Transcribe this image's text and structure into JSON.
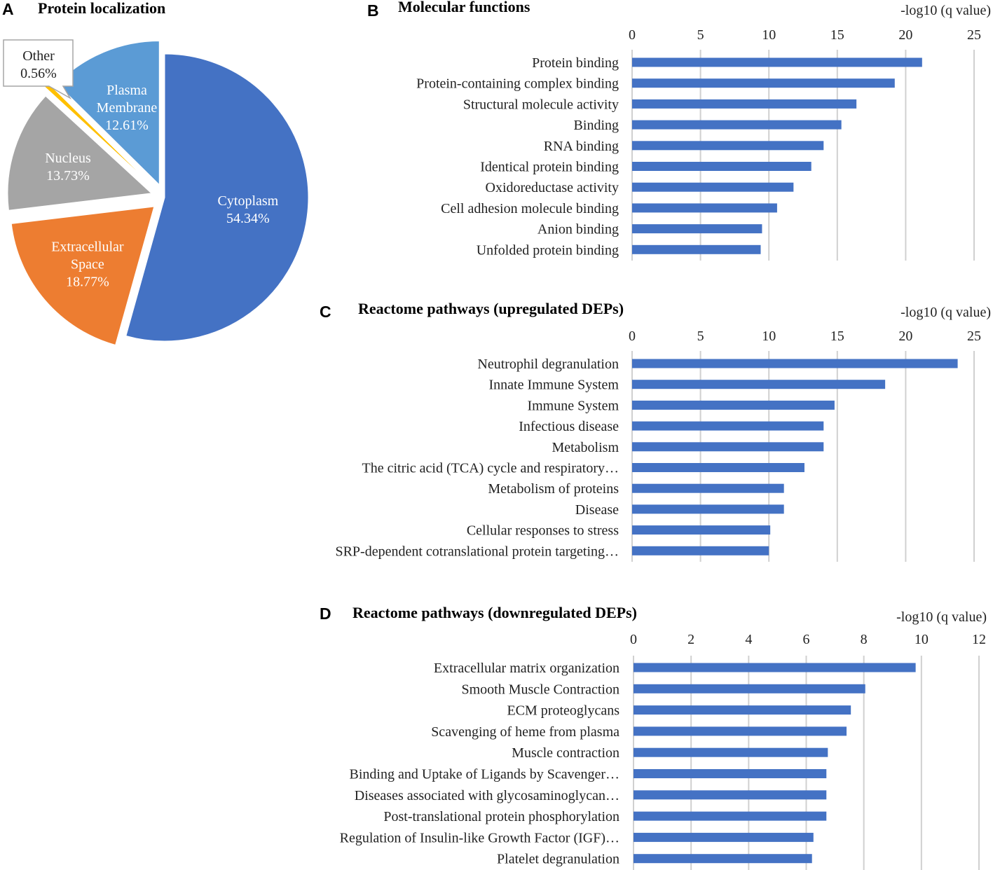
{
  "chart_data": [
    {
      "panel": "A",
      "type": "pie",
      "title": "Protein localization",
      "slices": [
        {
          "name": "Cytoplasm",
          "value": 54.34,
          "label": "54.34%",
          "color": "#4472C4"
        },
        {
          "name": "Extracellular Space",
          "value": 18.77,
          "label": "18.77%",
          "color": "#ED7D31"
        },
        {
          "name": "Nucleus",
          "value": 13.73,
          "label": "13.73%",
          "color": "#A5A5A5"
        },
        {
          "name": "Other",
          "value": 0.56,
          "label": "0.56%",
          "color": "#FFC000"
        },
        {
          "name": "Plasma Membrane",
          "value": 12.61,
          "label": "12.61%",
          "color": "#5B9BD5"
        }
      ]
    },
    {
      "panel": "B",
      "type": "bar",
      "orientation": "horizontal",
      "title": "Molecular functions",
      "xlabel": "-log10 (q value)",
      "xlim": [
        0,
        25
      ],
      "ticks": [
        0,
        5,
        10,
        15,
        20,
        25
      ],
      "color": "#4472C4",
      "categories": [
        "Protein binding",
        "Protein-containing complex binding",
        "Structural molecule activity",
        "Binding",
        "RNA binding",
        "Identical protein binding",
        "Oxidoreductase activity",
        "Cell adhesion molecule binding",
        "Anion binding",
        "Unfolded protein binding"
      ],
      "values": [
        21.2,
        19.2,
        16.4,
        15.3,
        14.0,
        13.1,
        11.8,
        10.6,
        9.5,
        9.4
      ]
    },
    {
      "panel": "C",
      "type": "bar",
      "orientation": "horizontal",
      "title": "Reactome pathways (upregulated DEPs)",
      "xlabel": "-log10 (q value)",
      "xlim": [
        0,
        25
      ],
      "ticks": [
        0,
        5,
        10,
        15,
        20,
        25
      ],
      "color": "#4472C4",
      "categories": [
        "Neutrophil degranulation",
        "Innate Immune System",
        "Immune System",
        "Infectious disease",
        "Metabolism",
        "The citric acid (TCA) cycle and respiratory…",
        "Metabolism of proteins",
        "Disease",
        "Cellular responses to stress",
        "SRP-dependent cotranslational protein targeting…"
      ],
      "values": [
        23.8,
        18.5,
        14.8,
        14.0,
        14.0,
        12.6,
        11.1,
        11.1,
        10.1,
        10.0
      ]
    },
    {
      "panel": "D",
      "type": "bar",
      "orientation": "horizontal",
      "title": "Reactome pathways (downregulated DEPs)",
      "xlabel": "-log10 (q value)",
      "xlim": [
        0,
        12
      ],
      "ticks": [
        0,
        2,
        4,
        6,
        8,
        10,
        12
      ],
      "color": "#4472C4",
      "categories": [
        "Extracellular matrix organization",
        "Smooth Muscle Contraction",
        "ECM proteoglycans",
        "Scavenging of heme from plasma",
        "Muscle contraction",
        "Binding and Uptake of Ligands by Scavenger…",
        "Diseases associated with glycosaminoglycan…",
        "Post-translational protein phosphorylation",
        "Regulation of Insulin-like Growth Factor (IGF)…",
        "Platelet degranulation"
      ],
      "values": [
        9.8,
        8.05,
        7.55,
        7.4,
        6.75,
        6.7,
        6.7,
        6.7,
        6.25,
        6.2
      ]
    }
  ]
}
